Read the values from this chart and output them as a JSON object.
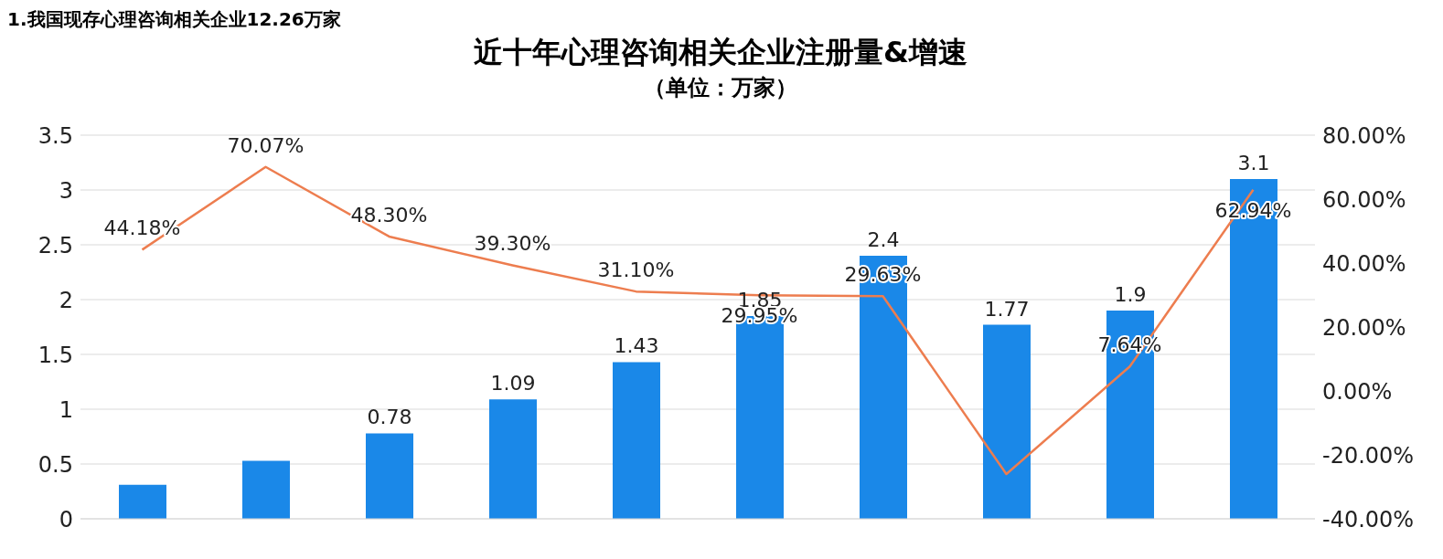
{
  "chart_data": {
    "type": "bar",
    "title": "近十年心理咨询相关企业注册量&增速",
    "subtitle": "（单位：万家）",
    "annotations": [
      "1.我国现存心理咨询相关企业12.26万家"
    ],
    "categories": [
      null,
      null,
      null,
      null,
      null,
      null,
      null,
      null,
      null,
      null
    ],
    "series": [
      {
        "color": "#1a88e8",
        "values": [
          0.31,
          0.53,
          0.78,
          1.09,
          1.43,
          1.85,
          2.4,
          1.77,
          1.9,
          3.1
        ],
        "value_labels": [
          null,
          null,
          "0.78",
          "1.09",
          "1.43",
          "1.85",
          "2.4",
          "1.77",
          "1.9",
          "3.1"
        ]
      },
      {
        "type": "line",
        "axis": "y2",
        "color": "#ed7d4f",
        "values": [
          44.18,
          70.07,
          48.3,
          39.3,
          31.1,
          29.95,
          29.63,
          -26,
          7.64,
          62.94
        ],
        "value_labels": [
          "44.18%",
          "70.07%",
          "48.30%",
          "39.30%",
          "31.10%",
          "29.95%",
          "29.63%",
          null,
          "7.64%",
          "62.94%"
        ]
      }
    ],
    "ylim": [
      0,
      3.5
    ],
    "yticks": [
      0,
      0.5,
      1,
      1.5,
      2,
      2.5,
      3,
      3.5
    ],
    "y2lim": [
      -40,
      80
    ],
    "y2ticks": [
      {
        "value": -40,
        "label": "-40.00%"
      },
      {
        "value": -20,
        "label": "-20.00%"
      },
      {
        "value": 0,
        "label": "0.00%"
      },
      {
        "value": 20,
        "label": "20.00%"
      },
      {
        "value": 40,
        "label": "40.00%"
      },
      {
        "value": 60,
        "label": "60.00%"
      },
      {
        "value": 80,
        "label": "80.00%"
      }
    ],
    "grid": "y",
    "legend": false
  }
}
